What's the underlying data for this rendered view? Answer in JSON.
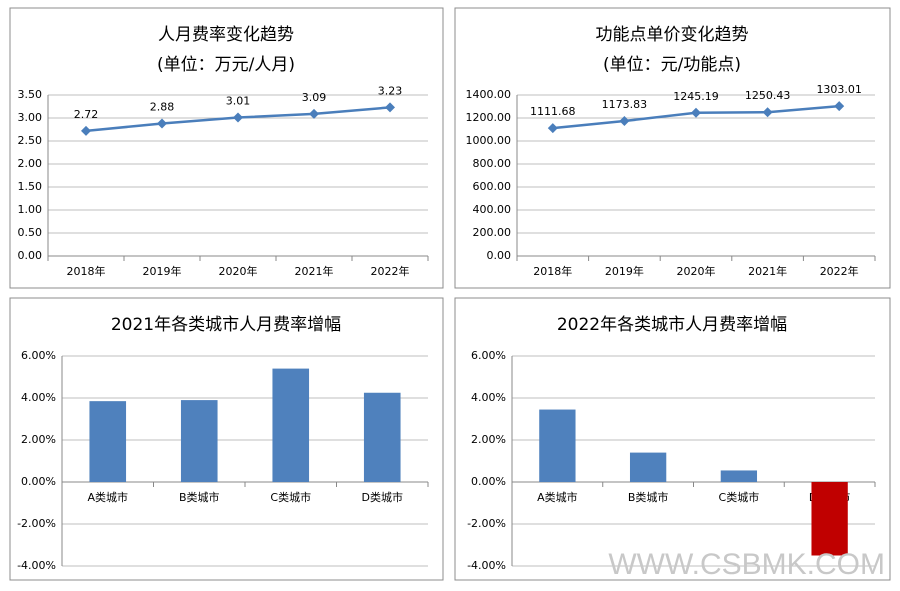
{
  "chart_data": [
    {
      "type": "line",
      "title": "人月费率变化趋势",
      "subtitle": "(单位：万元/人月)",
      "categories": [
        "2018年",
        "2019年",
        "2020年",
        "2021年",
        "2022年"
      ],
      "values": [
        2.72,
        2.88,
        3.01,
        3.09,
        3.23
      ],
      "color": "#4a7ebb",
      "ylim": [
        0,
        3.5
      ],
      "yticks": [
        {
          "value": 0,
          "label": "0.00"
        },
        {
          "value": 0.5,
          "label": "0.50"
        },
        {
          "value": 1,
          "label": "1.00"
        },
        {
          "value": 1.5,
          "label": "1.50"
        },
        {
          "value": 2,
          "label": "2.00"
        },
        {
          "value": 2.5,
          "label": "2.50"
        },
        {
          "value": 3,
          "label": "3.00"
        },
        {
          "value": 3.5,
          "label": "3.50"
        }
      ],
      "grid": true
    },
    {
      "type": "line",
      "title": "功能点单价变化趋势",
      "subtitle": "(单位：元/功能点)",
      "categories": [
        "2018年",
        "2019年",
        "2020年",
        "2021年",
        "2022年"
      ],
      "values": [
        1111.68,
        1173.83,
        1245.19,
        1250.43,
        1303.01
      ],
      "color": "#4a7ebb",
      "ylim": [
        0,
        1400
      ],
      "yticks": [
        {
          "value": 0,
          "label": "0.00"
        },
        {
          "value": 200,
          "label": "200.00"
        },
        {
          "value": 400,
          "label": "400.00"
        },
        {
          "value": 600,
          "label": "600.00"
        },
        {
          "value": 800,
          "label": "800.00"
        },
        {
          "value": 1000,
          "label": "1000.00"
        },
        {
          "value": 1200,
          "label": "1200.00"
        },
        {
          "value": 1400,
          "label": "1400.00"
        }
      ],
      "grid": true
    },
    {
      "type": "bar",
      "title": "2021年各类城市人月费率增幅",
      "categories": [
        "A类城市",
        "B类城市",
        "C类城市",
        "D类城市"
      ],
      "values": [
        3.85,
        3.9,
        5.4,
        4.25
      ],
      "color": "#4f81bd",
      "ylim": [
        -4,
        6
      ],
      "yticks": [
        {
          "value": -4,
          "label": "-4.00%"
        },
        {
          "value": -2,
          "label": "-2.00%"
        },
        {
          "value": 0,
          "label": "0.00%"
        },
        {
          "value": 2,
          "label": "2.00%"
        },
        {
          "value": 4,
          "label": "4.00%"
        },
        {
          "value": 6,
          "label": "6.00%"
        }
      ],
      "grid": true
    },
    {
      "type": "bar",
      "title": "2022年各类城市人月费率增幅",
      "categories": [
        "A类城市",
        "B类城市",
        "C类城市",
        "D类城市"
      ],
      "values": [
        3.45,
        1.4,
        0.55,
        -3.5
      ],
      "colors": [
        "#4f81bd",
        "#4f81bd",
        "#4f81bd",
        "#c00000"
      ],
      "ylim": [
        -4,
        6
      ],
      "yticks": [
        {
          "value": -4,
          "label": "-4.00%"
        },
        {
          "value": -2,
          "label": "-2.00%"
        },
        {
          "value": 0,
          "label": "0.00%"
        },
        {
          "value": 2,
          "label": "2.00%"
        },
        {
          "value": 4,
          "label": "4.00%"
        },
        {
          "value": 6,
          "label": "6.00%"
        }
      ],
      "grid": true
    }
  ],
  "watermark": "WWW.CSBMK.COM"
}
